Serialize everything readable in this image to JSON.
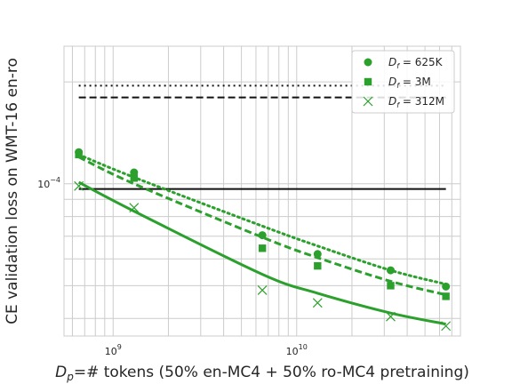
{
  "chart_data": {
    "type": "scatter",
    "title": "",
    "xlabel": {
      "symbol": "D",
      "sub": "p",
      "rest": "=# tokens (50% en-MC4 + 50% ro-MC4 pretraining)"
    },
    "ylabel": "CE validation loss on WMT-16 en-ro",
    "x_scale": "log",
    "y_scale": "log",
    "xlim": [
      540000000.0,
      78000000000.0
    ],
    "ylim": [
      3.55e-05,
      0.000255
    ],
    "x_ticks": [
      {
        "value": 1000000000.0,
        "base": "10",
        "exp": "9"
      },
      {
        "value": 10000000000.0,
        "base": "10",
        "exp": "10"
      }
    ],
    "y_ticks": [
      {
        "value": 0.0001,
        "base": "10",
        "exp": "−4"
      }
    ],
    "grid": true,
    "legend_position": "upper-right",
    "color": "#2ca02c",
    "series": [
      {
        "name": "= 625K",
        "legend_symbol": "D",
        "legend_sub": "f",
        "marker": "circle",
        "line_style": "dotted",
        "x": [
          650000000.0,
          1300000000.0,
          6500000000.0,
          13000000000.0,
          32500000000.0,
          65000000000.0
        ],
        "y": [
          0.000124,
          0.000108,
          7.05e-05,
          6.2e-05,
          5.55e-05,
          4.97e-05
        ],
        "fit_y": [
          0.000122,
          0.0001045,
          7.5e-05,
          6.55e-05,
          5.55e-05,
          5.05e-05
        ]
      },
      {
        "name": "= 3M",
        "legend_symbol": "D",
        "legend_sub": "f",
        "marker": "square",
        "line_style": "dashed",
        "x": [
          650000000.0,
          1300000000.0,
          6500000000.0,
          13000000000.0,
          32500000000.0,
          65000000000.0
        ],
        "y": [
          0.000122,
          0.000104,
          6.45e-05,
          5.72e-05,
          5e-05,
          4.65e-05
        ],
        "fit_y": [
          0.00012,
          0.0001,
          6.95e-05,
          6.05e-05,
          5.15e-05,
          4.7e-05
        ]
      },
      {
        "name": "= 312M",
        "legend_symbol": "D",
        "legend_sub": "f",
        "marker": "x",
        "line_style": "solid",
        "x": [
          650000000.0,
          1300000000.0,
          6500000000.0,
          13000000000.0,
          32500000000.0,
          65000000000.0
        ],
        "y": [
          9.85e-05,
          8.5e-05,
          4.85e-05,
          4.45e-05,
          4.05e-05,
          3.8e-05
        ],
        "fit_y": [
          0.000101,
          8.3e-05,
          5.4e-05,
          4.75e-05,
          4.15e-05,
          3.85e-05
        ]
      }
    ],
    "reference_lines": [
      {
        "style": "dotted",
        "color": "#111111",
        "y": 0.000195,
        "x_range": [
          650000000.0,
          65000000000.0
        ]
      },
      {
        "style": "dashed",
        "color": "#111111",
        "y": 0.00018,
        "x_range": [
          650000000.0,
          65000000000.0
        ]
      },
      {
        "style": "solid",
        "color": "#111111",
        "y": 9.65e-05,
        "x_range": [
          650000000.0,
          65000000000.0
        ]
      }
    ]
  }
}
